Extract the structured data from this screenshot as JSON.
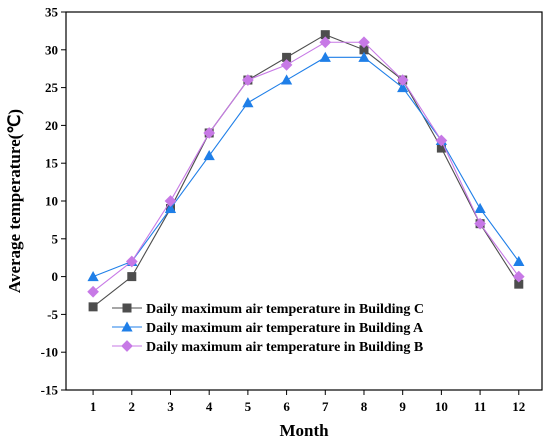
{
  "chart_data": {
    "type": "line",
    "xlabel": "Month",
    "ylabel": "Average temperature(℃)",
    "x": [
      1,
      2,
      3,
      4,
      5,
      6,
      7,
      8,
      9,
      10,
      11,
      12
    ],
    "xlim": [
      0.3,
      12.6
    ],
    "ylim": [
      -15,
      35
    ],
    "yticks": [
      -15,
      -10,
      -5,
      0,
      5,
      10,
      15,
      20,
      25,
      30,
      35
    ],
    "grid": false,
    "legend_position": "bottom-left",
    "series": [
      {
        "name": "Daily maximum air temperature in Building C",
        "values": [
          -4,
          0,
          9,
          19,
          26,
          29,
          32,
          30,
          26,
          17,
          7,
          -1
        ],
        "color": "#4d4d4d",
        "marker": "square"
      },
      {
        "name": "Daily maximum air temperature in Building A",
        "values": [
          0,
          2,
          9,
          16,
          23,
          26,
          29,
          29,
          25,
          18,
          9,
          2
        ],
        "color": "#1f7fe8",
        "marker": "triangle"
      },
      {
        "name": "Daily maximum air temperature in Building B",
        "values": [
          -2,
          2,
          10,
          19,
          26,
          28,
          31,
          31,
          26,
          18,
          7,
          0
        ],
        "color": "#c779e6",
        "marker": "diamond"
      }
    ]
  }
}
